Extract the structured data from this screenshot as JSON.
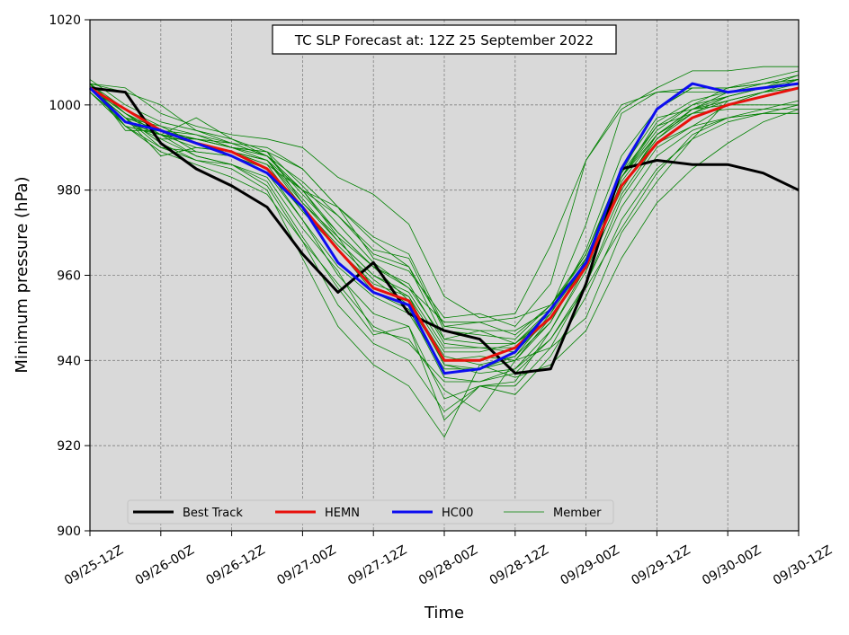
{
  "chart_data": {
    "type": "line",
    "title": "TC SLP Forecast at: 12Z 25 September 2022",
    "xlabel": "Time",
    "ylabel": "Minimum pressure (hPa)",
    "x_ticks": [
      "09/25-12Z",
      "09/26-00Z",
      "09/26-12Z",
      "09/27-00Z",
      "09/27-12Z",
      "09/28-00Z",
      "09/28-12Z",
      "09/29-00Z",
      "09/29-12Z",
      "09/30-00Z",
      "09/30-12Z"
    ],
    "x_step_hours": 6,
    "ylim": [
      900,
      1020
    ],
    "y_ticks": [
      900,
      920,
      940,
      960,
      980,
      1000,
      1020
    ],
    "grid": true,
    "background": "#d9d9d9",
    "legend_location": "lower-left",
    "series": [
      {
        "name": "Best Track",
        "color": "#000000",
        "values": [
          1004,
          1003,
          991,
          985,
          981,
          976,
          965,
          956,
          963,
          951,
          947,
          945,
          937,
          938,
          958,
          985,
          987,
          986,
          986,
          984,
          980
        ]
      },
      {
        "name": "HEMN",
        "color": "#e8110c",
        "values": [
          1004,
          999,
          994,
          991,
          989,
          985,
          976,
          966,
          957,
          954,
          940,
          940,
          943,
          950,
          962,
          981,
          991,
          997,
          1000,
          1002,
          1004
        ]
      },
      {
        "name": "HC00",
        "color": "#0d0df0",
        "values": [
          1004,
          996,
          994,
          991,
          988,
          984,
          976,
          963,
          956,
          953,
          937,
          938,
          942,
          952,
          963,
          985,
          999,
          1005,
          1003,
          1004,
          1005
        ]
      },
      {
        "name": "Member",
        "color": "#008000",
        "members": [
          [
            1005,
            995,
            989,
            986,
            983,
            979,
            968,
            958,
            948,
            944,
            935,
            935,
            937,
            945,
            958,
            978,
            990,
            995,
            1000,
            1003,
            1006
          ],
          [
            1006,
            1000,
            996,
            994,
            992,
            988,
            982,
            974,
            965,
            962,
            945,
            947,
            944,
            950,
            962,
            981,
            992,
            999,
            1002,
            1004,
            1007
          ],
          [
            1004,
            995,
            993,
            997,
            992,
            989,
            977,
            969,
            962,
            954,
            941,
            939,
            941,
            949,
            964,
            983,
            994,
            1000,
            1004,
            1006,
            1008
          ],
          [
            1005,
            998,
            994,
            989,
            988,
            984,
            973,
            962,
            955,
            951,
            938,
            938,
            940,
            949,
            963,
            980,
            993,
            999,
            1003,
            1005,
            1007
          ],
          [
            1004,
            997,
            988,
            990,
            989,
            987,
            976,
            967,
            959,
            953,
            940,
            941,
            940,
            950,
            963,
            981,
            992,
            998,
            1001,
            1003,
            1005
          ],
          [
            1003,
            996,
            993,
            990,
            989,
            986,
            975,
            966,
            958,
            955,
            939,
            938,
            941,
            951,
            963,
            983,
            993,
            999,
            1001,
            1003,
            1004
          ],
          [
            1005,
            998,
            992,
            992,
            990,
            987,
            978,
            968,
            960,
            955,
            942,
            942,
            944,
            952,
            965,
            984,
            995,
            1000,
            1002,
            1004,
            1006
          ],
          [
            1004,
            997,
            994,
            992,
            990,
            989,
            985,
            976,
            964,
            961,
            950,
            951,
            948,
            958,
            987,
            1000,
            1003,
            1003,
            1003,
            1004,
            1005
          ],
          [
            1005,
            1003,
            1000,
            994,
            991,
            990,
            985,
            976,
            968,
            962,
            948,
            947,
            947,
            952,
            972,
            998,
            1003,
            1004,
            1004,
            1005,
            1006
          ],
          [
            1004,
            996,
            994,
            993,
            991,
            988,
            980,
            970,
            962,
            957,
            945,
            944,
            944,
            951,
            966,
            988,
            999,
            1004,
            1004,
            1005,
            1006
          ],
          [
            1004,
            997,
            995,
            991,
            989,
            987,
            977,
            968,
            960,
            956,
            943,
            943,
            942,
            950,
            963,
            983,
            996,
            1001,
            1003,
            1004,
            1005
          ],
          [
            1005,
            996,
            993,
            991,
            988,
            985,
            973,
            960,
            951,
            948,
            931,
            934,
            935,
            947,
            961,
            979,
            991,
            997,
            1000,
            1002,
            1004
          ],
          [
            1003,
            995,
            990,
            987,
            986,
            982,
            969,
            957,
            946,
            948,
            926,
            934,
            934,
            943,
            958,
            976,
            988,
            994,
            997,
            999,
            1001
          ],
          [
            1005,
            996,
            992,
            988,
            986,
            981,
            968,
            953,
            944,
            940,
            928,
            934,
            932,
            941,
            955,
            973,
            985,
            992,
            996,
            998,
            1000
          ],
          [
            1004,
            997,
            991,
            987,
            985,
            980,
            964,
            948,
            939,
            934,
            922,
            939,
            936,
            939,
            947,
            964,
            977,
            985,
            991,
            996,
            999
          ],
          [
            1004,
            998,
            993,
            988,
            986,
            983,
            971,
            961,
            947,
            945,
            933,
            928,
            940,
            943,
            950,
            970,
            982,
            992,
            1001,
            1003,
            1004
          ],
          [
            1005,
            994,
            994,
            992,
            990,
            989,
            981,
            972,
            963,
            957,
            949,
            949,
            950,
            953,
            965,
            985,
            997,
            999,
            1000,
            1000,
            1000
          ],
          [
            1004,
            996,
            994,
            991,
            989,
            986,
            980,
            976,
            969,
            965,
            948,
            949,
            946,
            953,
            964,
            984,
            999,
            1004,
            1004,
            1005,
            1006
          ],
          [
            1003,
            995,
            993,
            992,
            991,
            988,
            980,
            974,
            966,
            964,
            947,
            946,
            945,
            953,
            963,
            983,
            995,
            998,
            999,
            999,
            999
          ],
          [
            1005,
            999,
            995,
            993,
            990,
            988,
            979,
            970,
            962,
            958,
            944,
            943,
            943,
            952,
            963,
            981,
            991,
            995,
            997,
            998,
            998
          ],
          [
            1004,
            998,
            993,
            991,
            989,
            987,
            980,
            969,
            957,
            954,
            939,
            937,
            938,
            945,
            957,
            971,
            984,
            993,
            997,
            998,
            998
          ],
          [
            1005,
            1004,
            998,
            995,
            993,
            992,
            990,
            983,
            979,
            972,
            955,
            950,
            951,
            967,
            987,
            999,
            1004,
            1008,
            1008,
            1009,
            1009
          ],
          [
            1004,
            997,
            990,
            989,
            988,
            985,
            975,
            966,
            956,
            952,
            936,
            935,
            938,
            947,
            962,
            982,
            993,
            998,
            1002,
            1004,
            1005
          ]
        ]
      }
    ]
  }
}
